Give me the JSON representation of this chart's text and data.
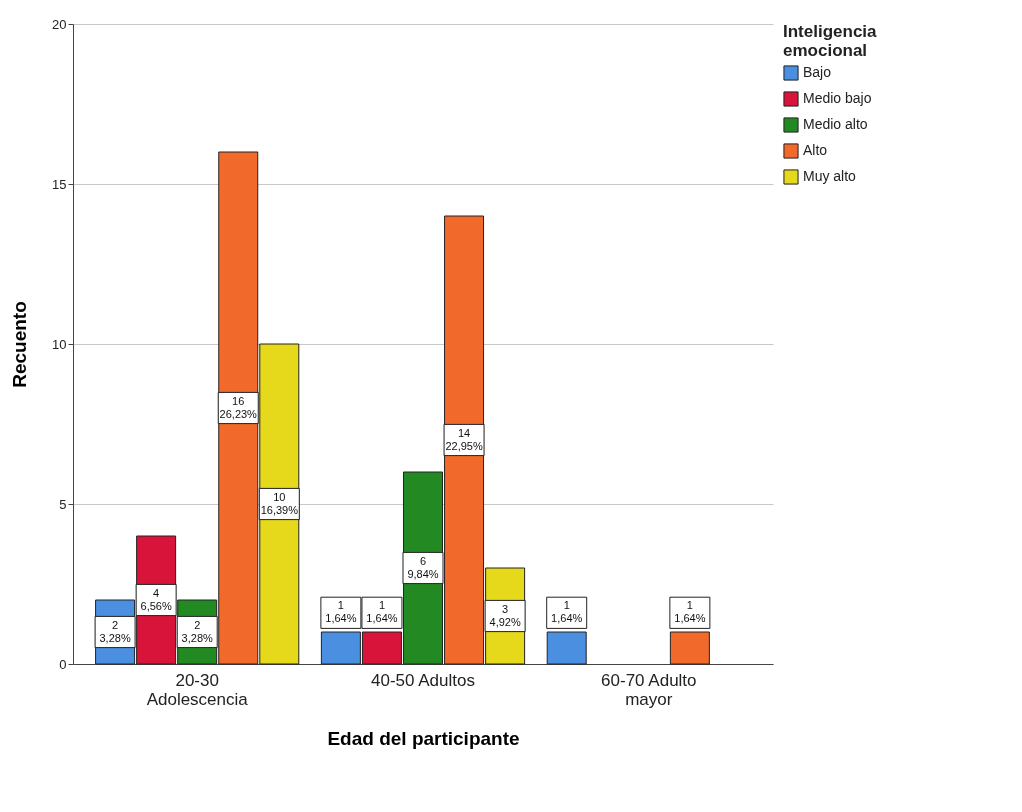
{
  "chart_data": {
    "type": "bar",
    "xlabel": "Edad del participante",
    "ylabel": "Recuento",
    "legend_title": "Inteligencia emocional",
    "categories": [
      "20-30 Adolescencia",
      "40-50 Adultos",
      "60-70 Adulto mayor"
    ],
    "series": [
      {
        "name": "Bajo",
        "color": "#4a8fe0",
        "values": [
          2,
          1,
          1
        ],
        "value_labels": [
          "2\n3,28%",
          "1\n1,64%",
          "1\n1,64%"
        ]
      },
      {
        "name": "Medio bajo",
        "color": "#d8143a",
        "values": [
          4,
          1,
          null
        ],
        "value_labels": [
          "4\n6,56%",
          "1\n1,64%",
          null
        ]
      },
      {
        "name": "Medio alto",
        "color": "#238a23",
        "values": [
          2,
          6,
          null
        ],
        "value_labels": [
          "2\n3,28%",
          "6\n9,84%",
          null
        ]
      },
      {
        "name": "Alto",
        "color": "#f26a2b",
        "values": [
          16,
          14,
          1
        ],
        "value_labels": [
          "16\n26,23%",
          "14\n22,95%",
          "1\n1,64%"
        ]
      },
      {
        "name": "Muy alto",
        "color": "#e6d81a",
        "values": [
          10,
          3,
          null
        ],
        "value_labels": [
          "10\n16,39%",
          "3\n4,92%",
          null
        ]
      }
    ],
    "ylim": [
      0,
      20
    ],
    "yticks": [
      0,
      5,
      10,
      15,
      20
    ],
    "grid": "y",
    "legend": "top right"
  }
}
